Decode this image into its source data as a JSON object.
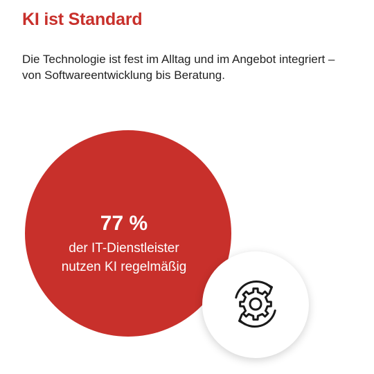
{
  "heading": "KI ist Standard",
  "intro": "Die Technologie ist fest im Alltag und im Angebot integriert – von Softwareentwicklung bis Beratung.",
  "stat": {
    "value": "77 %",
    "label_line1": "der IT-Dienstleister",
    "label_line2": "nutzen KI regelmäßig"
  },
  "icon": "gear-with-refresh-arrows-icon",
  "colors": {
    "accent": "#c8302b",
    "text": "#222222",
    "background": "#ffffff"
  }
}
